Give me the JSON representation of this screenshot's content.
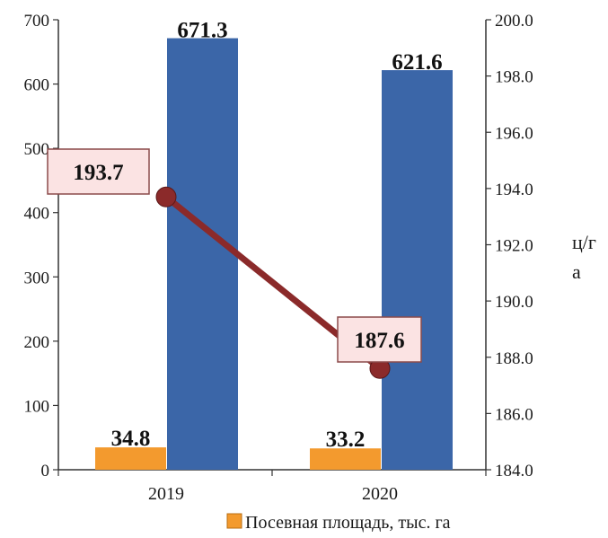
{
  "chart_data": {
    "type": "bar",
    "categories": [
      "2019",
      "2020"
    ],
    "series": [
      {
        "name": "Посевная площадь, тыс. га",
        "type": "bar",
        "axis": "left",
        "color": "#f39a2e",
        "values": [
          34.8,
          33.2
        ]
      },
      {
        "type": "bar",
        "axis": "left",
        "color": "#3b66a8",
        "values": [
          671.3,
          621.6
        ]
      },
      {
        "type": "line",
        "axis": "right",
        "color": "#8b2a2a",
        "values": [
          193.7,
          187.6
        ]
      }
    ],
    "y_left": {
      "min": 0,
      "max": 700,
      "step": 100,
      "ticks": [
        "0",
        "100",
        "200",
        "300",
        "400",
        "500",
        "600",
        "700"
      ]
    },
    "y_right": {
      "min": 184.0,
      "max": 200.0,
      "step": 2.0,
      "ticks": [
        "184.0",
        "186.0",
        "188.0",
        "190.0",
        "192.0",
        "194.0",
        "196.0",
        "198.0",
        "200.0"
      ],
      "unit_lines": [
        "ц/г",
        "а"
      ]
    },
    "labels": {
      "bar_small": [
        "34.8",
        "33.2"
      ],
      "bar_large": [
        "671.3",
        "621.6"
      ],
      "line": [
        "193.7",
        "187.6"
      ]
    },
    "legend": {
      "position": "bottom",
      "label": "Посевная площадь, тыс. га"
    },
    "grid": false
  }
}
